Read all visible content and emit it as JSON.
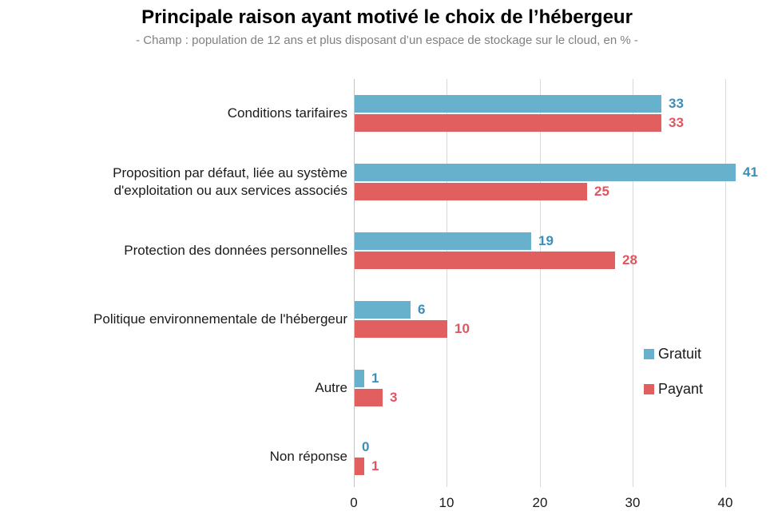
{
  "chart_data": {
    "type": "bar",
    "orientation": "horizontal",
    "title": "Principale raison ayant motivé le choix de l’hébergeur",
    "subtitle": "- Champ : population de 12 ans et plus disposant d’un espace de stockage sur le cloud, en % -",
    "categories": [
      {
        "lines": [
          "Conditions tarifaires"
        ]
      },
      {
        "lines": [
          "Proposition par défaut, liée au système",
          "d'exploitation ou aux services associés"
        ]
      },
      {
        "lines": [
          "Protection des données personnelles"
        ]
      },
      {
        "lines": [
          "Politique environnementale de l'hébergeur"
        ]
      },
      {
        "lines": [
          "Autre"
        ]
      },
      {
        "lines": [
          "Non réponse"
        ]
      }
    ],
    "series": [
      {
        "name": "Gratuit",
        "bar_color": "#68b1cd",
        "label_color": "#3a8fba",
        "values": [
          33,
          41,
          19,
          6,
          1,
          0
        ]
      },
      {
        "name": "Payant",
        "bar_color": "#e25f5f",
        "label_color": "#e05560",
        "values": [
          33,
          25,
          28,
          10,
          3,
          1
        ]
      }
    ],
    "x_ticks": [
      0,
      10,
      20,
      30,
      40
    ],
    "xlim": [
      0,
      42
    ],
    "grid": true,
    "legend_position": "inside-bottom-right",
    "colors": {
      "grid": "#d9d9d9",
      "axis": "#c4c4c4",
      "title": "#000000",
      "subtitle": "#808080",
      "tick_labels": "#1a1a1a"
    }
  }
}
